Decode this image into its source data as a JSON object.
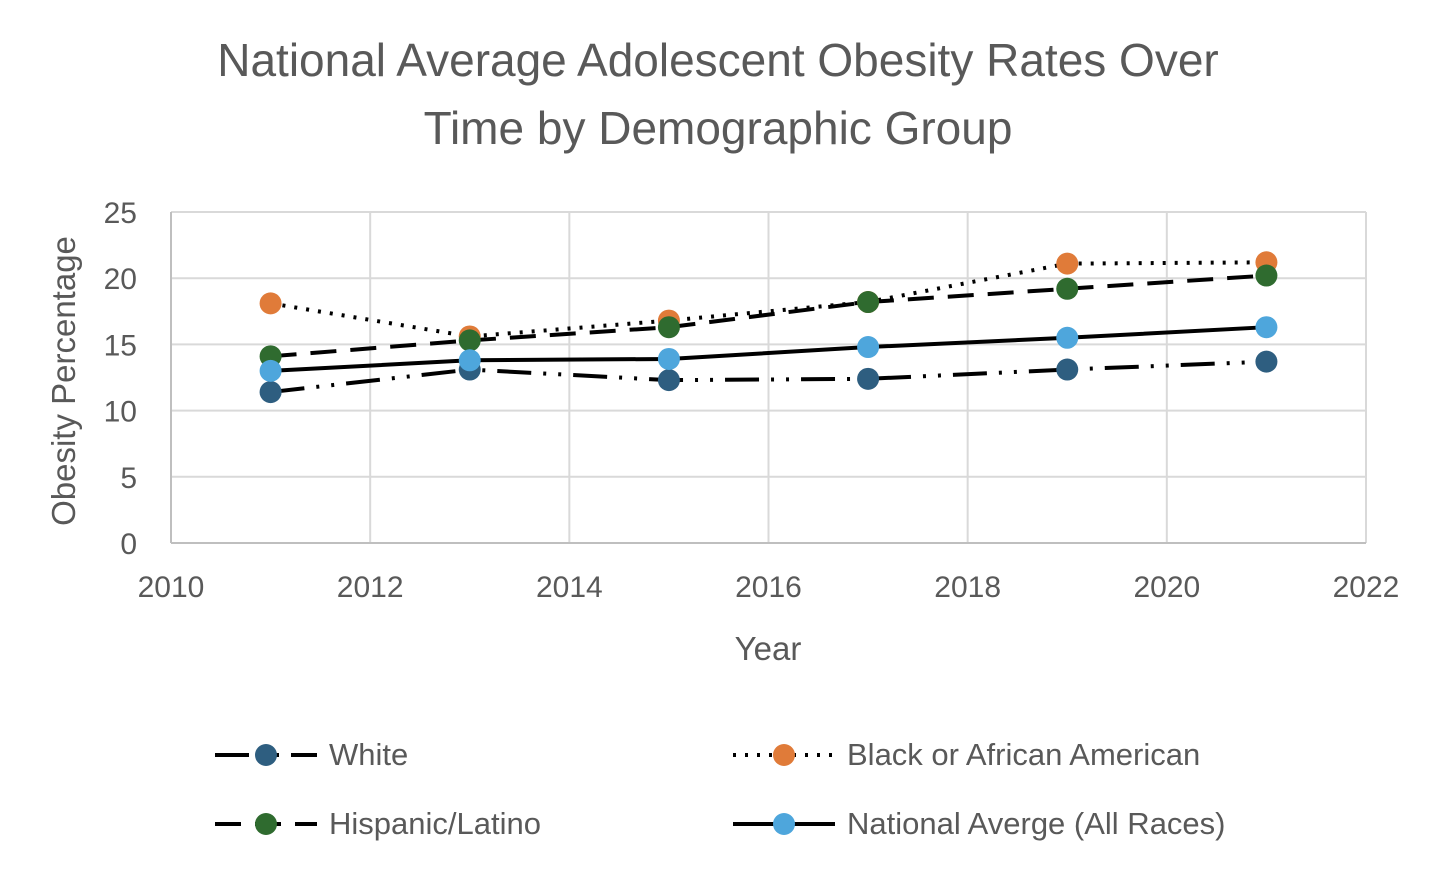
{
  "chart_data": {
    "type": "line",
    "title_lines": [
      "National Average Adolescent Obesity Rates Over",
      "Time by Demographic Group"
    ],
    "xlabel": "Year",
    "ylabel": "Obesity Percentage",
    "xlim": [
      2010,
      2022
    ],
    "ylim": [
      0,
      25
    ],
    "xticks": [
      2010,
      2012,
      2014,
      2016,
      2018,
      2020,
      2022
    ],
    "yticks": [
      0,
      5,
      10,
      15,
      20,
      25
    ],
    "grid": true,
    "legend_position": "bottom",
    "x": [
      2011,
      2013,
      2015,
      2017,
      2019,
      2021
    ],
    "series": [
      {
        "name": "White",
        "values": [
          11.4,
          13.1,
          12.3,
          12.4,
          13.1,
          13.7
        ],
        "color": "#2E5E80",
        "line_style": "long-dash-dot-dot"
      },
      {
        "name": "Black or African American",
        "values": [
          18.1,
          15.6,
          16.8,
          18.2,
          21.1,
          21.2
        ],
        "color": "#E07B39",
        "line_style": "dotted"
      },
      {
        "name": "Hispanic/Latino",
        "values": [
          14.1,
          15.3,
          16.3,
          18.2,
          19.2,
          20.2
        ],
        "color": "#2F6B2F",
        "line_style": "dashed"
      },
      {
        "name": "National Averge (All Races)",
        "values": [
          13.0,
          13.8,
          13.9,
          14.8,
          15.5,
          16.3
        ],
        "color": "#4EA6DC",
        "line_style": "solid"
      }
    ]
  }
}
